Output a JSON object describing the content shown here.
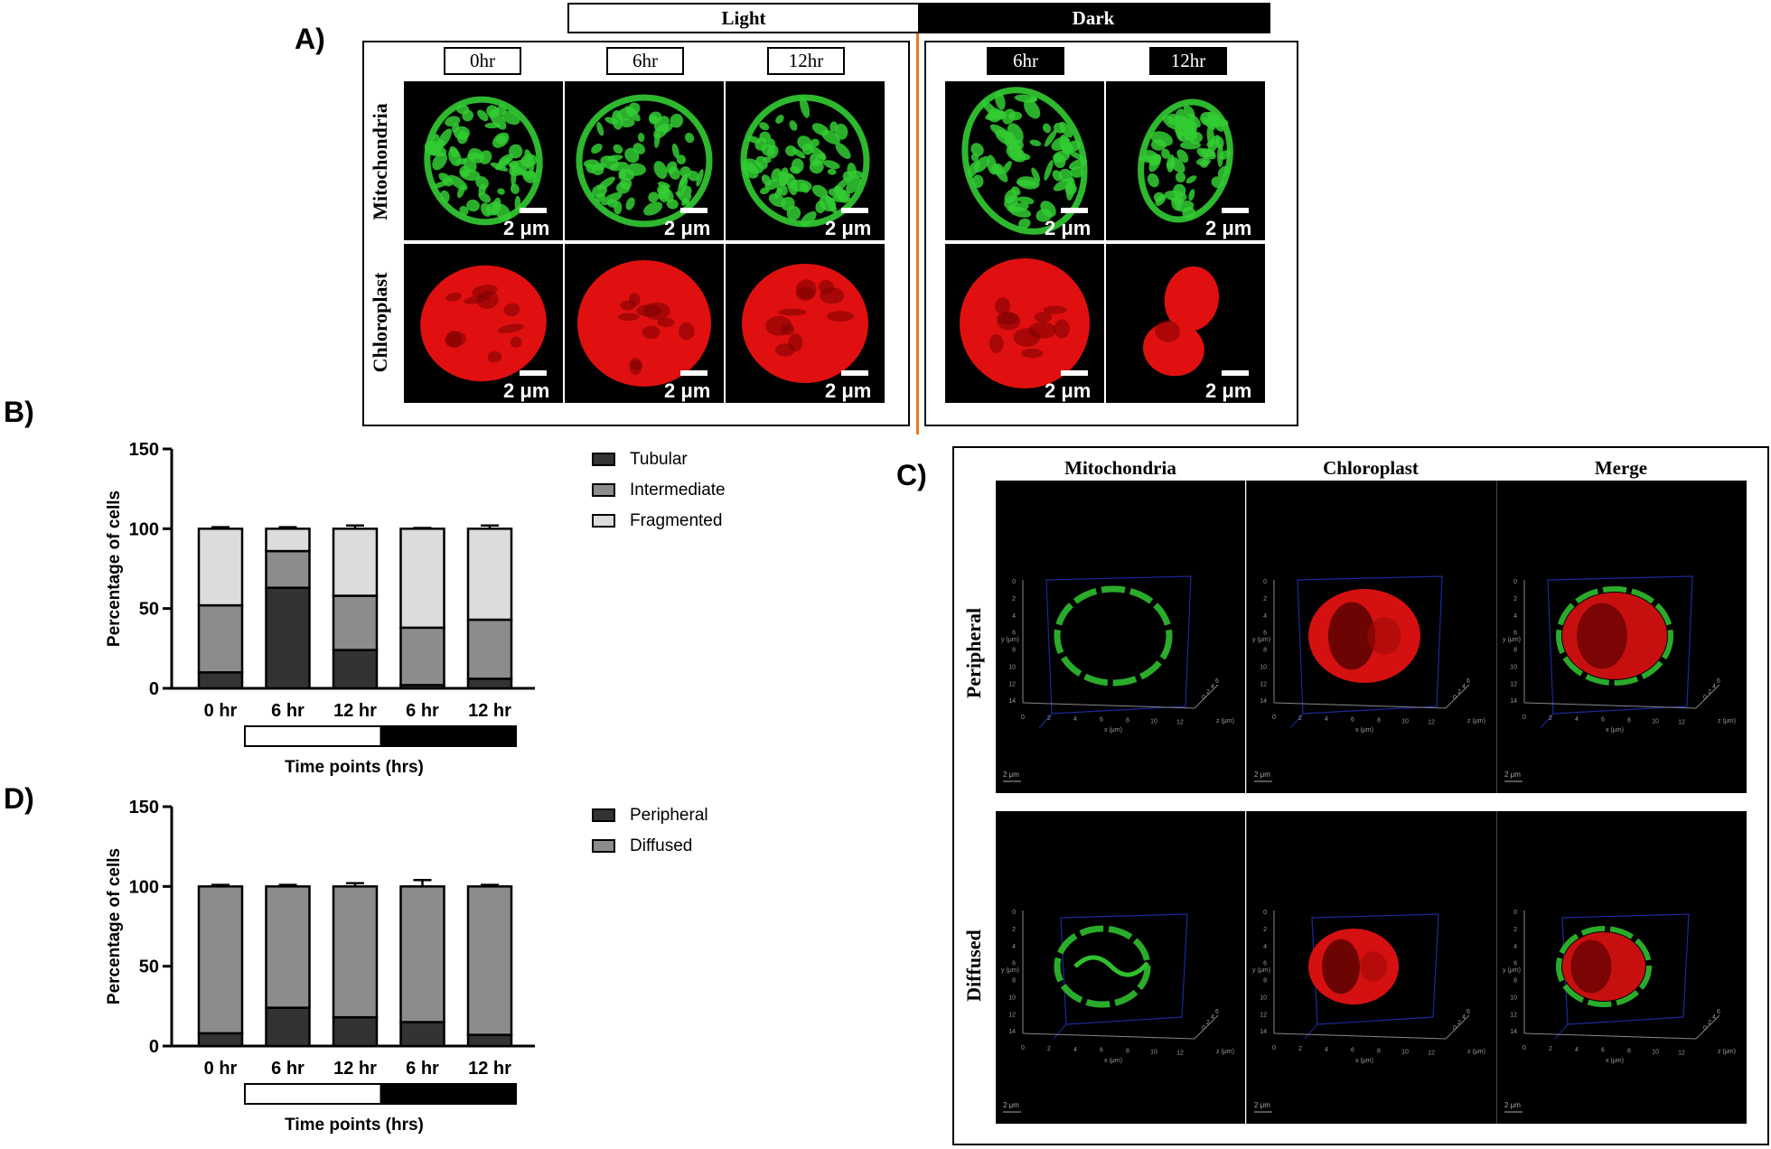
{
  "figure": {
    "panel_labels": {
      "a": "A)",
      "b": "B)",
      "c": "C)",
      "d": "D)"
    }
  },
  "panel_a": {
    "condition_light": "Light",
    "condition_dark": "Dark",
    "time_labels": [
      "0hr",
      "6hr",
      "12hr",
      "6hr",
      "12hr"
    ],
    "row_labels": [
      "Mitochondria",
      "Chloroplast"
    ],
    "scale_label": "2 μm",
    "colors": {
      "mitochondria": "#33cc33",
      "chloroplast": "#e01010",
      "divider": "#e07b2a"
    }
  },
  "panel_c": {
    "column_headers": [
      "Mitochondria",
      "Chloroplast",
      "Merge"
    ],
    "row_labels": [
      "Peripheral",
      "Diffused"
    ],
    "axis_x_label": "x (μm)",
    "axis_y_label": "y (μm)",
    "axis_z_label": "z (μm)",
    "scale_label": "2 μm",
    "y_ticks": [
      "0",
      "2",
      "4",
      "6",
      "8",
      "10",
      "12",
      "14"
    ],
    "x_ticks": [
      "0",
      "2",
      "4",
      "6",
      "8",
      "10",
      "12"
    ],
    "z_ticks": [
      "0",
      "2",
      "4",
      "6"
    ]
  },
  "chart_data": [
    {
      "id": "B",
      "type": "bar",
      "stacked": true,
      "categories": [
        "0 hr",
        "6 hr",
        "12 hr",
        "6 hr",
        "12 hr"
      ],
      "series": [
        {
          "name": "Tubular",
          "color": "#333333",
          "values": [
            10,
            63,
            24,
            2,
            6
          ],
          "errors": [
            2,
            3,
            2,
            1,
            2
          ]
        },
        {
          "name": "Intermediate",
          "color": "#8c8c8c",
          "values": [
            42,
            23,
            34,
            36,
            37
          ],
          "errors": [
            2,
            2,
            1,
            1,
            2
          ]
        },
        {
          "name": "Fragmented",
          "color": "#dcdcdc",
          "values": [
            48,
            14,
            42,
            62,
            57
          ],
          "errors": [
            1,
            1,
            2,
            0.5,
            2
          ]
        }
      ],
      "ylabel": "Percentage of cells",
      "xlabel": "Time points (hrs)",
      "ylim": [
        0,
        150
      ],
      "yticks": [
        0,
        50,
        100,
        150
      ],
      "light_dark_bar": [
        "light",
        "light",
        "dark",
        "dark"
      ],
      "legend_position": "right"
    },
    {
      "id": "D",
      "type": "bar",
      "stacked": true,
      "categories": [
        "0 hr",
        "6 hr",
        "12 hr",
        "6 hr",
        "12 hr"
      ],
      "series": [
        {
          "name": "Peripheral",
          "color": "#333333",
          "values": [
            8,
            24,
            18,
            15,
            7
          ],
          "errors": [
            1,
            1,
            2,
            4,
            1
          ]
        },
        {
          "name": "Diffused",
          "color": "#8c8c8c",
          "values": [
            92,
            76,
            82,
            85,
            93
          ],
          "errors": [
            1,
            1,
            2,
            4,
            1
          ]
        }
      ],
      "ylabel": "Percentage of cells",
      "xlabel": "Time points (hrs)",
      "ylim": [
        0,
        150
      ],
      "yticks": [
        0,
        50,
        100,
        150
      ],
      "light_dark_bar": [
        "light",
        "light",
        "dark",
        "dark"
      ],
      "legend_position": "right"
    }
  ]
}
